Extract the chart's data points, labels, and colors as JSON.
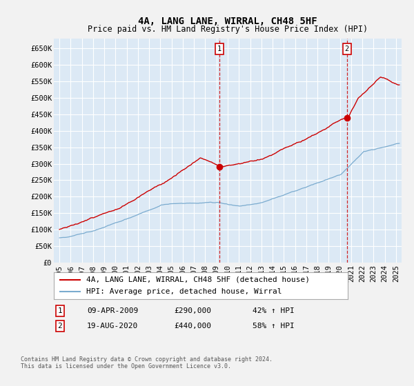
{
  "title": "4A, LANG LANE, WIRRAL, CH48 5HF",
  "subtitle": "Price paid vs. HM Land Registry's House Price Index (HPI)",
  "ylabel_ticks": [
    "£0",
    "£50K",
    "£100K",
    "£150K",
    "£200K",
    "£250K",
    "£300K",
    "£350K",
    "£400K",
    "£450K",
    "£500K",
    "£550K",
    "£600K",
    "£650K"
  ],
  "ytick_values": [
    0,
    50000,
    100000,
    150000,
    200000,
    250000,
    300000,
    350000,
    400000,
    450000,
    500000,
    550000,
    600000,
    650000
  ],
  "ylim": [
    0,
    680000
  ],
  "xlim_start": 1994.5,
  "xlim_end": 2025.5,
  "xtick_years": [
    1995,
    1996,
    1997,
    1998,
    1999,
    2000,
    2001,
    2002,
    2003,
    2004,
    2005,
    2006,
    2007,
    2008,
    2009,
    2010,
    2011,
    2012,
    2013,
    2014,
    2015,
    2016,
    2017,
    2018,
    2019,
    2020,
    2021,
    2022,
    2023,
    2024,
    2025
  ],
  "background_color": "#dce9f5",
  "fig_bg_color": "#f2f2f2",
  "grid_color": "#ffffff",
  "red_line_color": "#cc0000",
  "blue_line_color": "#7aabcf",
  "marker1_date": 2009.27,
  "marker1_price": 290000,
  "marker2_date": 2020.63,
  "marker2_price": 440000,
  "legend_entry1": "4A, LANG LANE, WIRRAL, CH48 5HF (detached house)",
  "legend_entry2": "HPI: Average price, detached house, Wirral",
  "annotation1_date": "09-APR-2009",
  "annotation1_price": "£290,000",
  "annotation1_hpi": "42% ↑ HPI",
  "annotation2_date": "19-AUG-2020",
  "annotation2_price": "£440,000",
  "annotation2_hpi": "58% ↑ HPI",
  "footer": "Contains HM Land Registry data © Crown copyright and database right 2024.\nThis data is licensed under the Open Government Licence v3.0.",
  "title_fontsize": 10,
  "subtitle_fontsize": 8.5,
  "tick_fontsize": 7.5,
  "legend_fontsize": 8,
  "annotation_fontsize": 8
}
